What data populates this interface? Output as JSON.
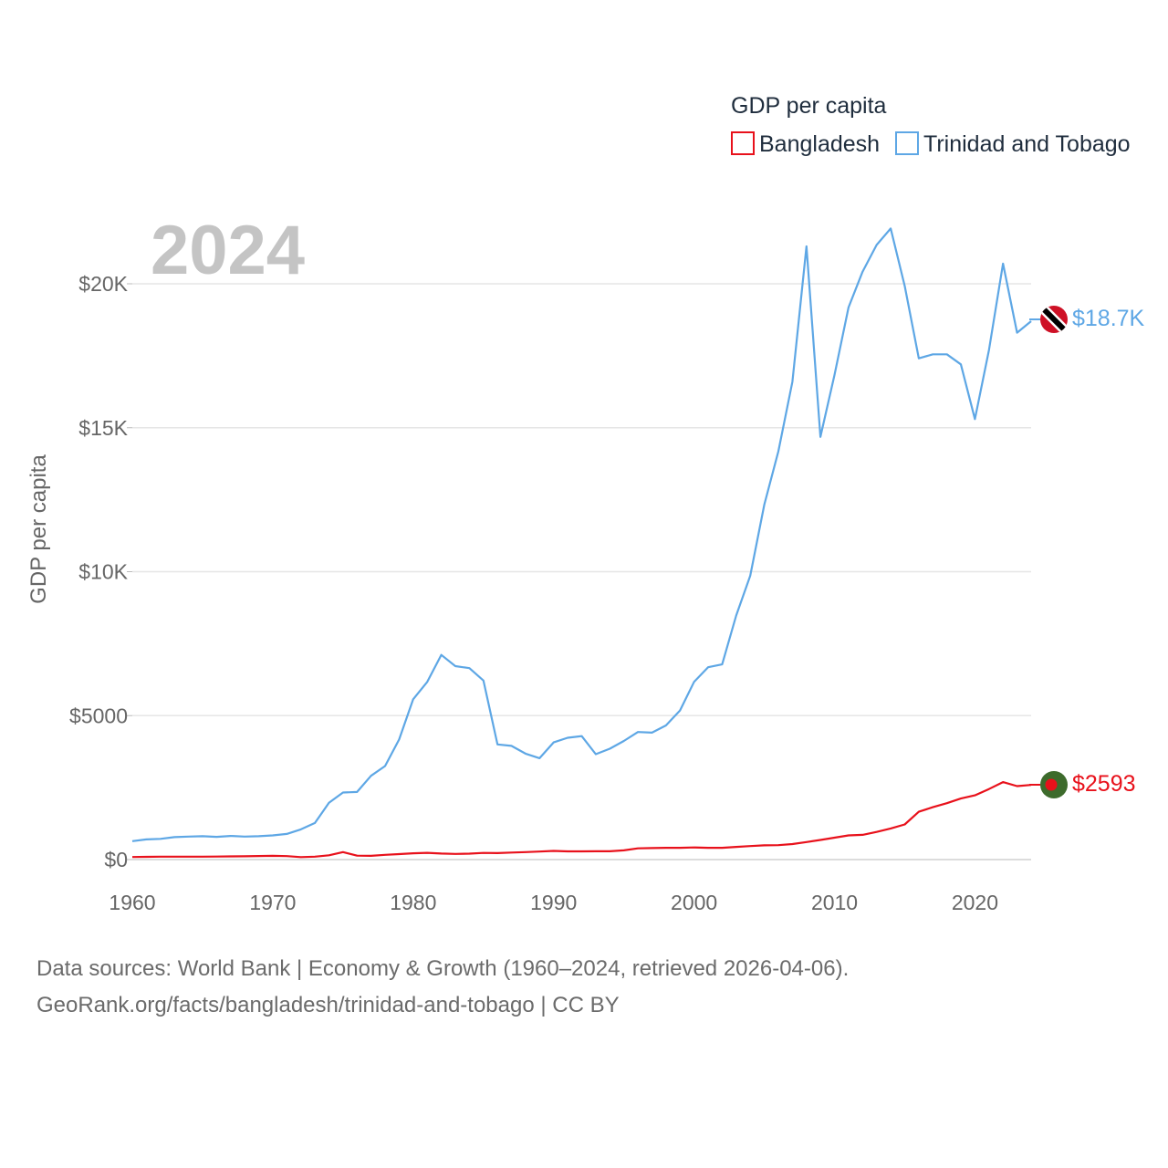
{
  "chart_data": {
    "type": "line",
    "year_label": "2024",
    "legend_title": "GDP per capita",
    "ylabel": "GDP per capita",
    "xlim": [
      1960,
      2024
    ],
    "ylim": [
      0,
      22000
    ],
    "x_ticks": [
      1960,
      1970,
      1980,
      1990,
      2000,
      2010,
      2020
    ],
    "x_tick_labels": [
      "1960",
      "1970",
      "1980",
      "1990",
      "2000",
      "2010",
      "2020"
    ],
    "y_ticks": [
      0,
      5000,
      10000,
      15000,
      20000
    ],
    "y_tick_labels": [
      "$0",
      "$5000",
      "$10K",
      "$15K",
      "$20K"
    ],
    "grid": true,
    "legend_position": "top-right",
    "series": [
      {
        "name": "Bangladesh",
        "color": "#e8111b",
        "end_label": "$2593",
        "flag": "bangladesh-flag-icon",
        "x": [
          1960,
          1961,
          1962,
          1963,
          1964,
          1965,
          1966,
          1967,
          1968,
          1969,
          1970,
          1971,
          1972,
          1973,
          1974,
          1975,
          1976,
          1977,
          1978,
          1979,
          1980,
          1981,
          1982,
          1983,
          1984,
          1985,
          1986,
          1987,
          1988,
          1989,
          1990,
          1991,
          1992,
          1993,
          1994,
          1995,
          1996,
          1997,
          1998,
          1999,
          2000,
          2001,
          2002,
          2003,
          2004,
          2005,
          2006,
          2007,
          2008,
          2009,
          2010,
          2011,
          2012,
          2013,
          2014,
          2015,
          2016,
          2017,
          2018,
          2019,
          2020,
          2021,
          2022,
          2023,
          2024
        ],
        "values": [
          90,
          95,
          100,
          100,
          100,
          100,
          105,
          110,
          115,
          125,
          130,
          120,
          85,
          100,
          150,
          260,
          135,
          130,
          165,
          190,
          220,
          235,
          210,
          195,
          205,
          230,
          225,
          245,
          260,
          280,
          300,
          285,
          285,
          290,
          290,
          320,
          390,
          400,
          410,
          410,
          420,
          410,
          410,
          440,
          470,
          495,
          500,
          540,
          610,
          680,
          760,
          840,
          860,
          960,
          1080,
          1220,
          1660,
          1820,
          1960,
          2120,
          2230,
          2450,
          2690,
          2550,
          2593
        ]
      },
      {
        "name": "Trinidad and Tobago",
        "color": "#5ea7e5",
        "end_label": "$18.7K",
        "flag": "trinidad-and-tobago-flag-icon",
        "x": [
          1960,
          1961,
          1962,
          1963,
          1964,
          1965,
          1966,
          1967,
          1968,
          1969,
          1970,
          1971,
          1972,
          1973,
          1974,
          1975,
          1976,
          1977,
          1978,
          1979,
          1980,
          1981,
          1982,
          1983,
          1984,
          1985,
          1986,
          1987,
          1988,
          1989,
          1990,
          1991,
          1992,
          1993,
          1994,
          1995,
          1996,
          1997,
          1998,
          1999,
          2000,
          2001,
          2002,
          2003,
          2004,
          2005,
          2006,
          2007,
          2008,
          2009,
          2010,
          2011,
          2012,
          2013,
          2014,
          2015,
          2016,
          2017,
          2018,
          2019,
          2020,
          2021,
          2022,
          2023,
          2024
        ],
        "values": [
          640,
          700,
          720,
          780,
          800,
          810,
          790,
          820,
          800,
          810,
          840,
          890,
          1050,
          1270,
          1970,
          2330,
          2350,
          2910,
          3250,
          4170,
          5570,
          6170,
          7110,
          6720,
          6650,
          6220,
          4000,
          3950,
          3680,
          3520,
          4070,
          4230,
          4290,
          3660,
          3850,
          4120,
          4430,
          4410,
          4660,
          5180,
          6170,
          6680,
          6780,
          8480,
          9860,
          12330,
          14180,
          16600,
          21300,
          14680,
          16830,
          19180,
          20420,
          21350,
          21920,
          19920,
          17410,
          17550,
          17550,
          17200,
          15300,
          17700,
          20700,
          18300,
          18700
        ]
      }
    ]
  },
  "footer": {
    "line1": "Data sources: World Bank | Economy & Growth (1960–2024, retrieved 2026-04-06).",
    "line2": "GeoRank.org/facts/bangladesh/trinidad-and-tobago | CC BY"
  }
}
